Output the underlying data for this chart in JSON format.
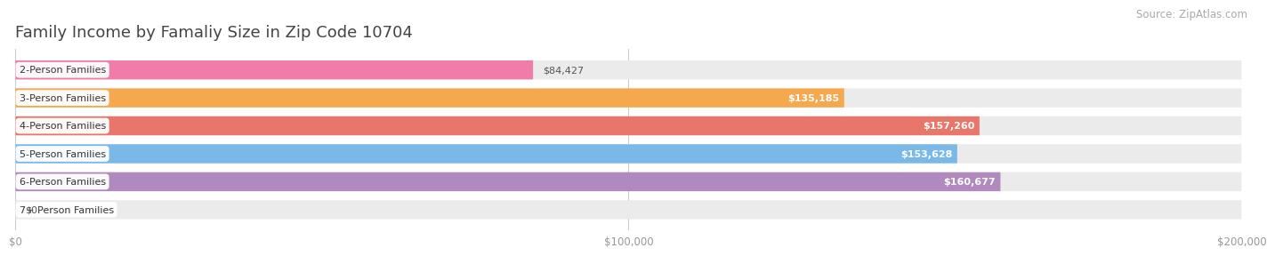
{
  "title": "Family Income by Famaliy Size in Zip Code 10704",
  "source": "Source: ZipAtlas.com",
  "categories": [
    "2-Person Families",
    "3-Person Families",
    "4-Person Families",
    "5-Person Families",
    "6-Person Families",
    "7+ Person Families"
  ],
  "values": [
    84427,
    135185,
    157260,
    153628,
    160677,
    0
  ],
  "labels": [
    "$84,427",
    "$135,185",
    "$157,260",
    "$153,628",
    "$160,677",
    "$0"
  ],
  "bar_colors": [
    "#f07caa",
    "#f5a84e",
    "#e8776a",
    "#7ab8e8",
    "#b08abf",
    "#7dd4d8"
  ],
  "bar_bg_color": "#ebebeb",
  "background_color": "#ffffff",
  "xlim": [
    0,
    200000
  ],
  "xticks": [
    0,
    100000,
    200000
  ],
  "xtick_labels": [
    "$0",
    "$100,000",
    "$200,000"
  ],
  "bar_height": 0.68,
  "label_color_inside": "#ffffff",
  "label_color_outside": "#555555",
  "title_fontsize": 13,
  "source_fontsize": 8.5,
  "category_fontsize": 8,
  "value_fontsize": 8
}
